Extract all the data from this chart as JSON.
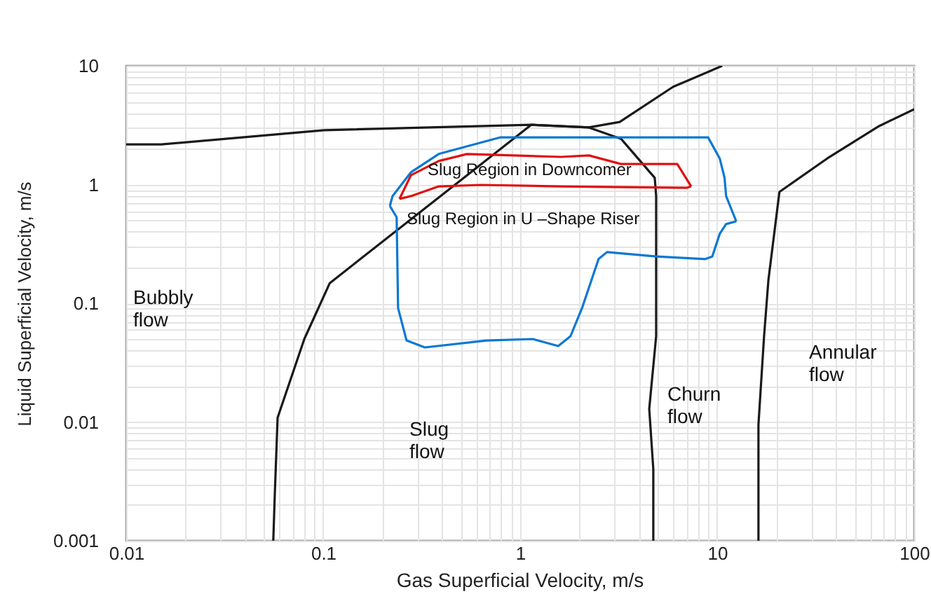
{
  "chart_data": {
    "type": "line",
    "xlabel": "Gas Superficial Velocity, m/s",
    "ylabel": "Liquid Superficial Velocity, m/s",
    "log": "xy",
    "grid": true,
    "xlim": [
      0.01,
      100
    ],
    "ylim": [
      0.001,
      10
    ],
    "xticks": [
      0.01,
      {
        "value": 0.02,
        "label": null
      },
      {
        "value": 0.03,
        "label": null
      },
      {
        "value": 0.04,
        "label": null
      },
      {
        "value": 0.05,
        "label": null
      },
      {
        "value": 0.06,
        "label": null
      },
      {
        "value": 0.07,
        "label": null
      },
      {
        "value": 0.08,
        "label": null
      },
      {
        "value": 0.09,
        "label": null
      },
      0.1,
      {
        "value": 0.2,
        "label": null
      },
      {
        "value": 0.3,
        "label": null
      },
      {
        "value": 0.4,
        "label": null
      },
      {
        "value": 0.5,
        "label": null
      },
      {
        "value": 0.6,
        "label": null
      },
      {
        "value": 0.7,
        "label": null
      },
      {
        "value": 0.8,
        "label": null
      },
      {
        "value": 0.9,
        "label": null
      },
      1,
      {
        "value": 2,
        "label": null
      },
      {
        "value": 3,
        "label": null
      },
      {
        "value": 4,
        "label": null
      },
      {
        "value": 5,
        "label": null
      },
      {
        "value": 6,
        "label": null
      },
      {
        "value": 7,
        "label": null
      },
      {
        "value": 8,
        "label": null
      },
      {
        "value": 9,
        "label": null
      },
      10,
      {
        "value": 20,
        "label": null
      },
      {
        "value": 30,
        "label": null
      },
      {
        "value": 40,
        "label": null
      },
      {
        "value": 50,
        "label": null
      },
      {
        "value": 60,
        "label": null
      },
      {
        "value": 70,
        "label": null
      },
      {
        "value": 80,
        "label": null
      },
      {
        "value": 90,
        "label": null
      },
      100
    ],
    "yticks": [
      0.001,
      {
        "value": 0.002,
        "label": null
      },
      {
        "value": 0.003,
        "label": null
      },
      {
        "value": 0.004,
        "label": null
      },
      {
        "value": 0.005,
        "label": null
      },
      {
        "value": 0.006,
        "label": null
      },
      {
        "value": 0.007,
        "label": null
      },
      {
        "value": 0.008,
        "label": null
      },
      {
        "value": 0.009,
        "label": null
      },
      0.01,
      {
        "value": 0.02,
        "label": null
      },
      {
        "value": 0.03,
        "label": null
      },
      {
        "value": 0.04,
        "label": null
      },
      {
        "value": 0.05,
        "label": null
      },
      {
        "value": 0.06,
        "label": null
      },
      {
        "value": 0.07,
        "label": null
      },
      {
        "value": 0.08,
        "label": null
      },
      {
        "value": 0.09,
        "label": null
      },
      0.1,
      {
        "value": 0.2,
        "label": null
      },
      {
        "value": 0.3,
        "label": null
      },
      {
        "value": 0.4,
        "label": null
      },
      {
        "value": 0.5,
        "label": null
      },
      {
        "value": 0.6,
        "label": null
      },
      {
        "value": 0.7,
        "label": null
      },
      {
        "value": 0.8,
        "label": null
      },
      {
        "value": 0.9,
        "label": null
      },
      1,
      {
        "value": 2,
        "label": null
      },
      {
        "value": 3,
        "label": null
      },
      {
        "value": 4,
        "label": null
      },
      {
        "value": 5,
        "label": null
      },
      {
        "value": 6,
        "label": null
      },
      {
        "value": 7,
        "label": null
      },
      {
        "value": 8,
        "label": null
      },
      {
        "value": 9,
        "label": null
      },
      10
    ],
    "series": [
      {
        "color": "#1a1a1a",
        "x": [
          0.01,
          0.0151,
          0.101,
          1.14,
          2.23,
          3.25,
          4.82,
          4.9,
          4.9,
          4.52,
          4.74,
          4.74
        ],
        "values": [
          2.18,
          2.18,
          2.87,
          3.19,
          3.03,
          2.43,
          1.14,
          0.8,
          0.0528,
          0.0129,
          0.004,
          0.001
        ]
      },
      {
        "color": "#1a1a1a",
        "x": [
          0.0558,
          0.0568,
          0.0587,
          0.0802,
          0.108,
          1.14,
          2.23,
          3.2,
          5.97,
          10.6
        ],
        "values": [
          0.001,
          0.00245,
          0.0109,
          0.05,
          0.148,
          3.19,
          3.03,
          3.37,
          6.65,
          10
        ]
      },
      {
        "color": "#1a1a1a",
        "x": [
          16.2,
          16.2,
          17.3,
          18.2,
          20.7,
          36.2,
          66.4,
          100
        ],
        "values": [
          0.001,
          0.00953,
          0.0528,
          0.157,
          0.867,
          1.66,
          3.11,
          4.31
        ]
      },
      {
        "color": "#0a78d2",
        "x": [
          0.218,
          0.225,
          0.279,
          0.386,
          0.795,
          1.61,
          8.28,
          8.99,
          10.3,
          10.9,
          11.1,
          12.5
        ],
        "values": [
          0.661,
          0.8,
          1.27,
          1.81,
          2.5,
          2.5,
          2.5,
          2.5,
          1.66,
          1.14,
          0.8,
          0.49
        ]
      },
      {
        "color": "#0a78d2",
        "x": [
          12.5,
          11.1,
          10.3,
          9.44,
          8.7,
          4.9,
          2.76,
          2.5,
          2.06,
          1.8,
          1.56,
          1.16,
          0.675,
          0.328,
          0.265,
          0.24,
          0.236,
          0.218
        ],
        "values": [
          0.49,
          0.465,
          0.384,
          0.248,
          0.236,
          0.248,
          0.27,
          0.236,
          0.091,
          0.0528,
          0.0437,
          0.05,
          0.0486,
          0.0425,
          0.0486,
          0.091,
          0.532,
          0.661
        ]
      },
      {
        "color": "#e01010",
        "x": [
          0.244,
          0.279,
          0.386,
          0.537,
          1.61,
          2.23,
          3.25,
          6.27,
          7.38
        ],
        "values": [
          0.757,
          1.2,
          1.58,
          1.81,
          1.71,
          1.76,
          1.49,
          1.49,
          0.966
        ]
      },
      {
        "color": "#e01010",
        "x": [
          7.38,
          7.03,
          1.61,
          0.632,
          0.386,
          0.279,
          0.244
        ],
        "values": [
          0.966,
          0.94,
          0.966,
          0.993,
          0.966,
          0.8,
          0.757
        ]
      }
    ],
    "annotations": [
      "Bubbly\nflow",
      "Slug\nflow",
      "Churn\nflow",
      "Annular\nflow",
      "Slug Region in Downcomer",
      "Slug Region in U –Shape Riser"
    ]
  }
}
